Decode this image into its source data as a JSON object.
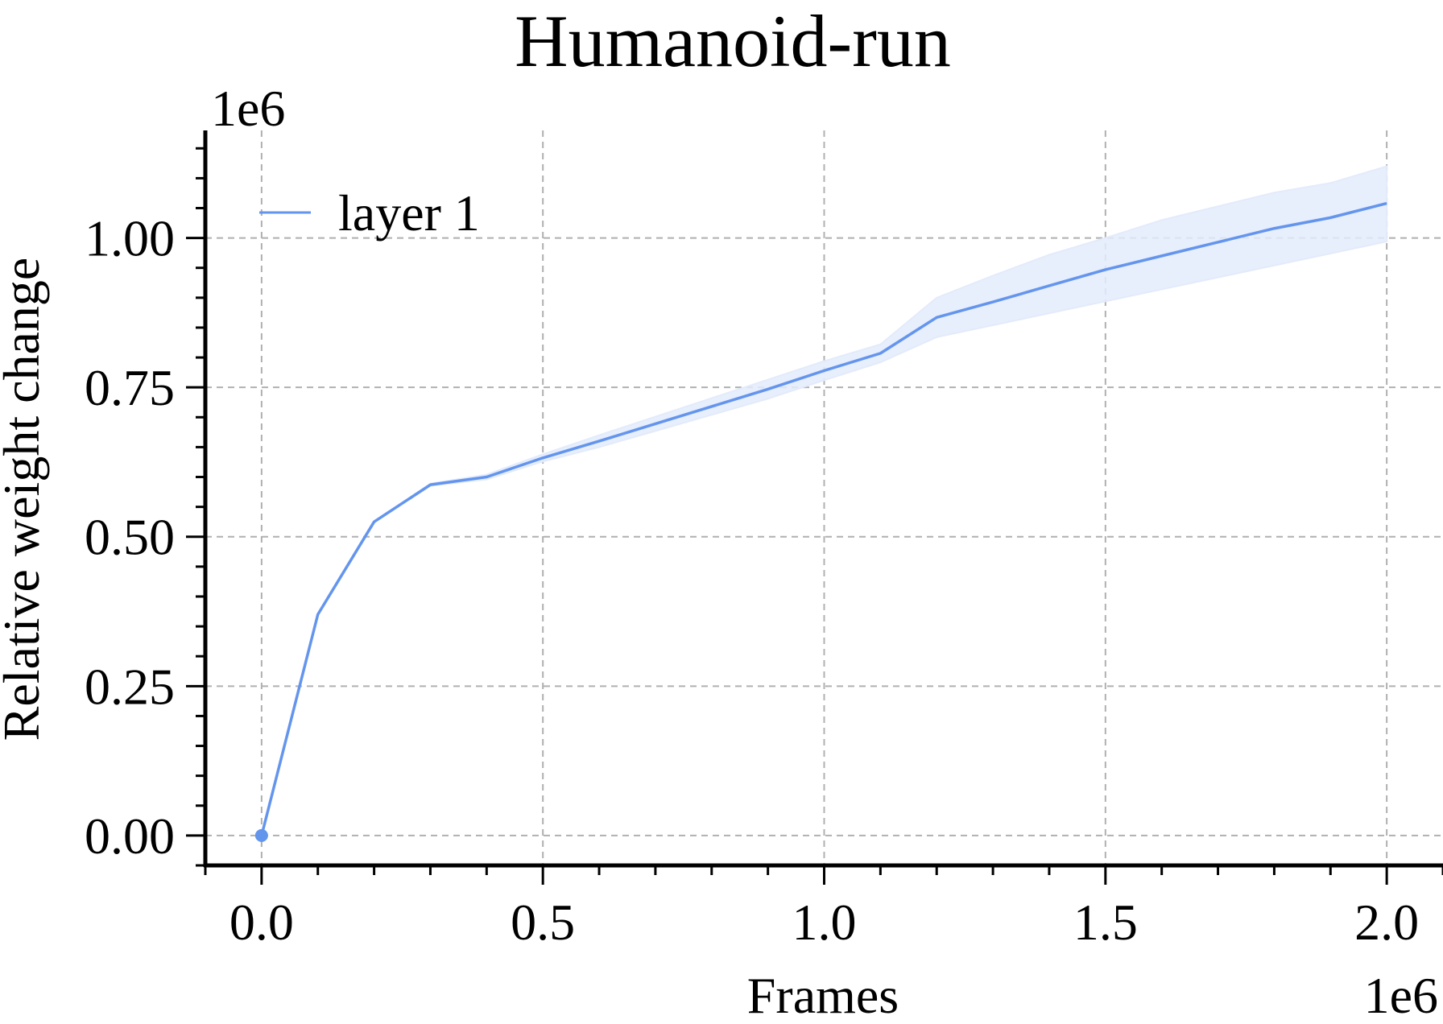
{
  "chart_data": {
    "type": "line",
    "title": "Humanoid-run",
    "xlabel": "Frames",
    "ylabel": "Relative weight change",
    "x_offset_label": "1e6",
    "y_offset_label": "1e6",
    "xlim": [
      -0.1,
      2.1
    ],
    "ylim": [
      -0.05,
      1.18
    ],
    "x_ticks": [
      0.0,
      0.5,
      1.0,
      1.5,
      2.0
    ],
    "x_tick_labels": [
      "0.0",
      "0.5",
      "1.0",
      "1.5",
      "2.0"
    ],
    "y_ticks": [
      0.0,
      0.25,
      0.5,
      0.75,
      1.0
    ],
    "y_tick_labels": [
      "0.00",
      "0.25",
      "0.50",
      "0.75",
      "1.00"
    ],
    "grid": true,
    "legend_position": "top-left",
    "series": [
      {
        "name": "layer 1",
        "color": "#6495ED",
        "band_color": "#E3EBFB",
        "x": [
          0.0,
          0.1,
          0.2,
          0.3,
          0.4,
          0.5,
          0.6,
          0.7,
          0.8,
          0.9,
          1.0,
          1.1,
          1.2,
          1.3,
          1.4,
          1.5,
          1.6,
          1.7,
          1.8,
          1.9,
          2.0
        ],
        "y": [
          0.0,
          0.37,
          0.525,
          0.587,
          0.6,
          0.632,
          0.66,
          0.689,
          0.718,
          0.747,
          0.778,
          0.807,
          0.867,
          0.893,
          0.92,
          0.947,
          0.97,
          0.993,
          1.016,
          1.034,
          1.058
        ],
        "lower": [
          0.0,
          0.37,
          0.525,
          0.585,
          0.596,
          0.626,
          0.65,
          0.677,
          0.704,
          0.731,
          0.762,
          0.792,
          0.834,
          0.854,
          0.874,
          0.894,
          0.914,
          0.934,
          0.954,
          0.974,
          0.994
        ],
        "upper": [
          0.0,
          0.37,
          0.525,
          0.589,
          0.604,
          0.638,
          0.67,
          0.701,
          0.732,
          0.763,
          0.794,
          0.822,
          0.9,
          0.937,
          0.972,
          1.0,
          1.03,
          1.053,
          1.076,
          1.092,
          1.12
        ]
      }
    ]
  }
}
